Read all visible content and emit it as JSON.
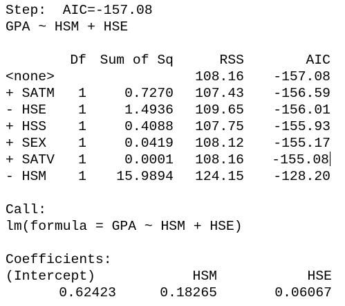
{
  "step_line": "Step:  AIC=-157.08",
  "model_line": "GPA ~ HSM + HSE",
  "anova": {
    "headers": [
      "",
      "Df",
      "Sum of Sq",
      "RSS",
      "AIC"
    ],
    "rows": [
      {
        "term": "<none>",
        "df": "",
        "sumsq": "",
        "rss": "108.16",
        "aic": "-157.08"
      },
      {
        "term": "+ SATM",
        "df": "1",
        "sumsq": "0.7270",
        "rss": "107.43",
        "aic": "-156.59"
      },
      {
        "term": "- HSE",
        "df": "1",
        "sumsq": "1.4936",
        "rss": "109.65",
        "aic": "-156.01"
      },
      {
        "term": "+ HSS",
        "df": "1",
        "sumsq": "0.4088",
        "rss": "107.75",
        "aic": "-155.93"
      },
      {
        "term": "+ SEX",
        "df": "1",
        "sumsq": "0.0419",
        "rss": "108.12",
        "aic": "-155.17"
      },
      {
        "term": "+ SATV",
        "df": "1",
        "sumsq": "0.0001",
        "rss": "108.16",
        "aic": "-155.08"
      },
      {
        "term": "- HSM",
        "df": "1",
        "sumsq": "15.9894",
        "rss": "124.15",
        "aic": "-128.20"
      }
    ]
  },
  "call_label": "Call:",
  "call_text": "lm(formula = GPA ~ HSM + HSE)",
  "coefficients_label": "Coefficients:",
  "coefficients": {
    "names": [
      "(Intercept)",
      "HSM",
      "HSE"
    ],
    "values": [
      "0.62423",
      "0.18265",
      "0.06067"
    ]
  }
}
